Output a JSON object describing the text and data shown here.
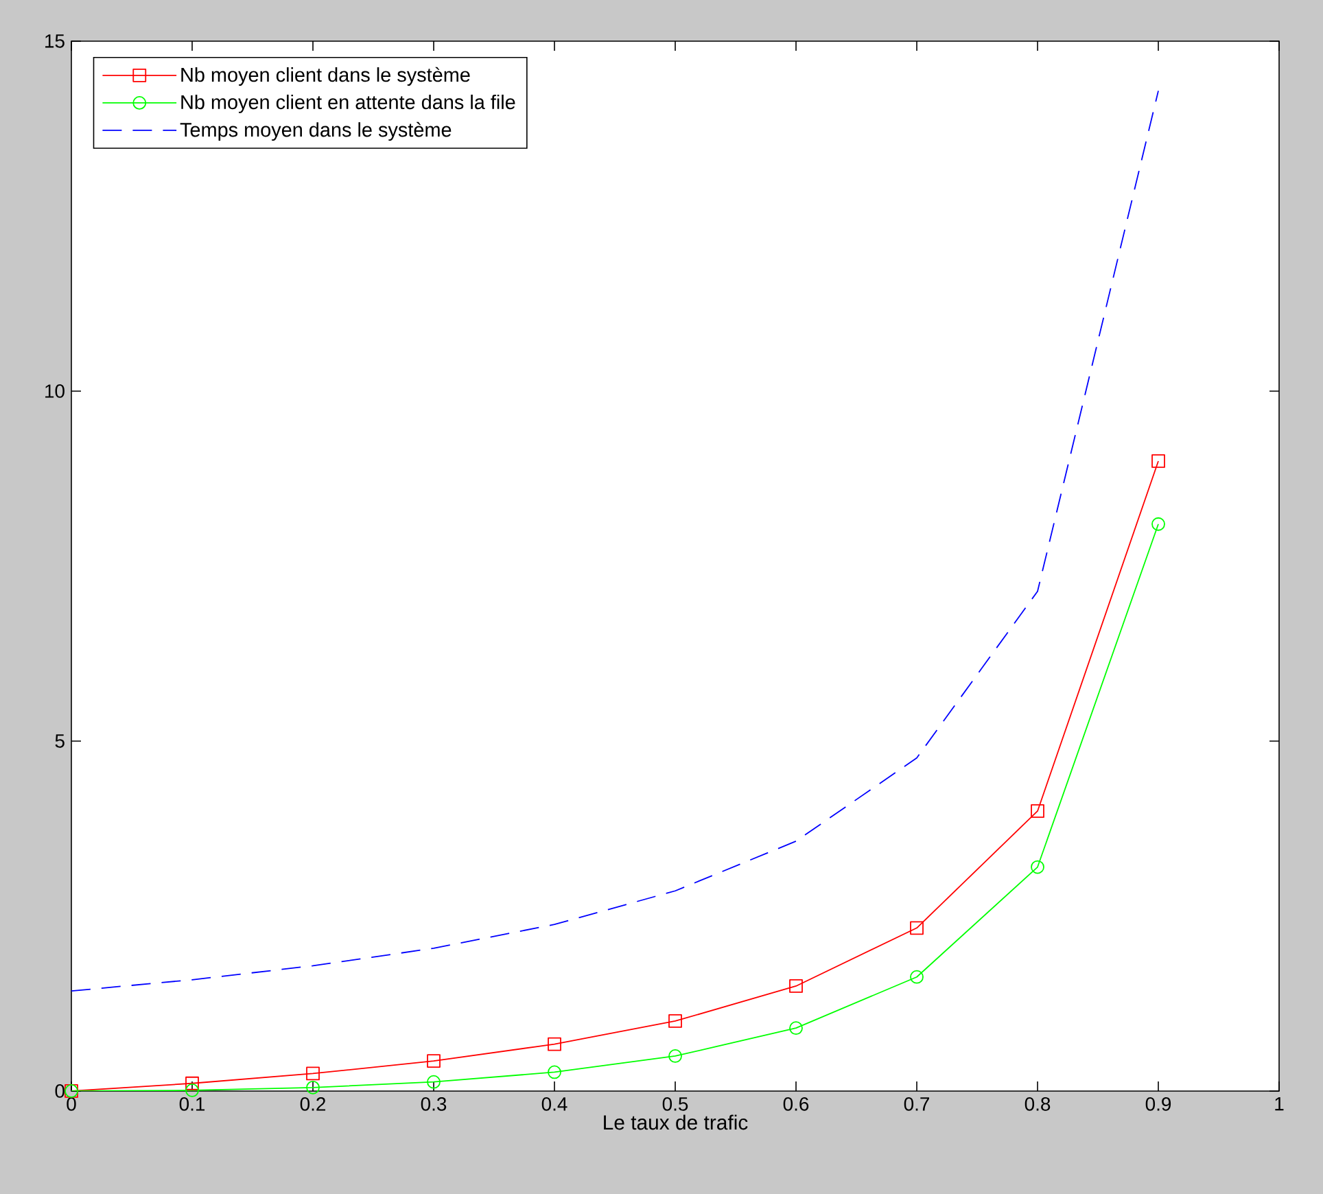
{
  "chart_data": {
    "type": "line",
    "xlabel": "Le taux de trafic",
    "x": [
      0,
      0.1,
      0.2,
      0.3,
      0.4,
      0.5,
      0.6,
      0.7,
      0.8,
      0.9
    ],
    "series": [
      {
        "name": "Nb moyen client dans le système",
        "color": "#ff0000",
        "marker": "square",
        "line_style": "solid",
        "values": [
          0,
          0.11,
          0.25,
          0.43,
          0.67,
          1.0,
          1.5,
          2.33,
          4.0,
          9.0
        ]
      },
      {
        "name": "Nb moyen client en attente dans la file",
        "color": "#00ff00",
        "marker": "circle",
        "line_style": "solid",
        "values": [
          0,
          0.01,
          0.05,
          0.13,
          0.27,
          0.5,
          0.9,
          1.63,
          3.2,
          8.1
        ]
      },
      {
        "name": "Temps moyen dans le système",
        "color": "#0000ff",
        "marker": "none",
        "line_style": "dashed",
        "values": [
          1.43,
          1.59,
          1.79,
          2.04,
          2.38,
          2.86,
          3.57,
          4.76,
          7.14,
          14.29
        ]
      }
    ],
    "xlim": [
      0,
      1
    ],
    "ylim": [
      0,
      15
    ],
    "xticks": [
      0,
      0.1,
      0.2,
      0.3,
      0.4,
      0.5,
      0.6,
      0.7,
      0.8,
      0.9,
      1
    ],
    "yticks": [
      0,
      5,
      10,
      15
    ],
    "grid": false,
    "legend": "top left"
  }
}
